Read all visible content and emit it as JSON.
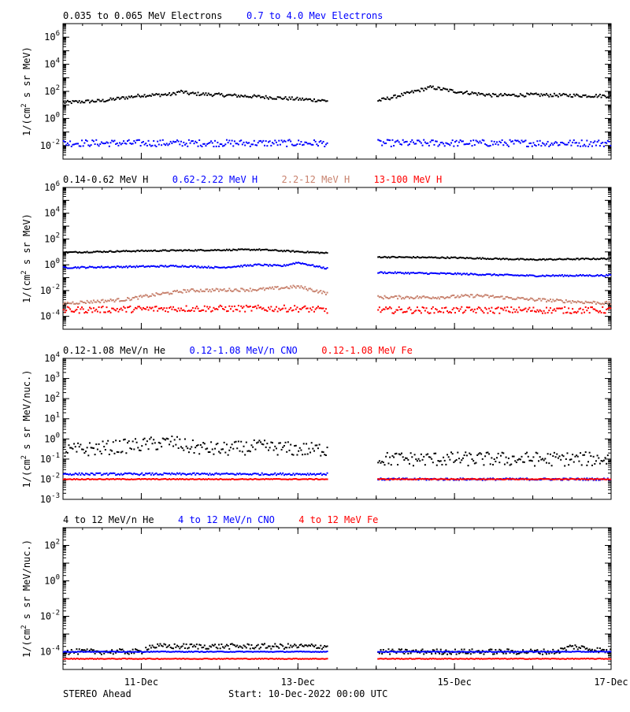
{
  "footer": {
    "spacecraft": "STEREO Ahead",
    "start": "Start: 10-Dec-2022 00:00 UTC"
  },
  "colors": {
    "black": "#000000",
    "blue": "#0000ff",
    "tan": "#c8826e",
    "red": "#ff0000"
  },
  "chart_data": [
    {
      "type": "scatter",
      "ylabel_main": "1/(cm",
      "ylabel_sup": "2",
      "ylabel_rest": " s sr MeV)",
      "yscale": "log",
      "ylim": [
        0.001,
        10000000
      ],
      "ytick_exponents": [
        6,
        4,
        2,
        0,
        -2
      ],
      "ytick_style": "power",
      "xlim": [
        0,
        7
      ],
      "data_gap": [
        3.38,
        4.02
      ],
      "series": [
        {
          "name": "0.035 to 0.065 MeV Electrons",
          "color": "#000000",
          "profile": [
            [
              0.0,
              15
            ],
            [
              0.5,
              20
            ],
            [
              1.0,
              50
            ],
            [
              1.4,
              60
            ],
            [
              1.5,
              100
            ],
            [
              1.6,
              70
            ],
            [
              2.5,
              40
            ],
            [
              3.38,
              20
            ],
            [
              4.02,
              20
            ],
            [
              4.2,
              35
            ],
            [
              4.5,
              100
            ],
            [
              4.7,
              200
            ],
            [
              5.0,
              100
            ],
            [
              5.5,
              50
            ],
            [
              6.0,
              55
            ],
            [
              6.5,
              50
            ],
            [
              7.0,
              45
            ]
          ],
          "scatter": 0.12
        },
        {
          "name": "0.7 to 4.0 Mev Electrons",
          "color": "#0000ff",
          "profile": [
            [
              0.0,
              0.015
            ],
            [
              7.0,
              0.015
            ]
          ],
          "scatter": 0.25
        }
      ]
    },
    {
      "type": "scatter",
      "ylabel_main": "1/(cm",
      "ylabel_sup": "2",
      "ylabel_rest": " s sr MeV)",
      "yscale": "log",
      "ylim": [
        1e-05,
        1000000
      ],
      "ytick_exponents": [
        6,
        4,
        2,
        0,
        -2,
        -4
      ],
      "ytick_style": "power",
      "xlim": [
        0,
        7
      ],
      "data_gap": [
        3.38,
        4.02
      ],
      "series": [
        {
          "name": "0.14-0.62 MeV H",
          "color": "#000000",
          "profile": [
            [
              0.0,
              9
            ],
            [
              1.0,
              12
            ],
            [
              2.5,
              15
            ],
            [
              3.38,
              8
            ],
            [
              4.02,
              4
            ],
            [
              5.0,
              3.5
            ],
            [
              6.0,
              2.5
            ],
            [
              7.0,
              3
            ]
          ],
          "scatter": 0.05
        },
        {
          "name": "0.62-2.22 MeV H",
          "color": "#0000ff",
          "profile": [
            [
              0.0,
              0.6
            ],
            [
              1.5,
              0.8
            ],
            [
              2.0,
              0.6
            ],
            [
              2.5,
              1.0
            ],
            [
              2.8,
              0.8
            ],
            [
              3.0,
              1.5
            ],
            [
              3.38,
              0.5
            ],
            [
              4.02,
              0.25
            ],
            [
              5.0,
              0.2
            ],
            [
              6.0,
              0.14
            ],
            [
              7.0,
              0.15
            ]
          ],
          "scatter": 0.06
        },
        {
          "name": "2.2-12 MeV H",
          "color": "#c8826e",
          "profile": [
            [
              0.0,
              0.001
            ],
            [
              0.8,
              0.002
            ],
            [
              1.2,
              0.005
            ],
            [
              1.6,
              0.01
            ],
            [
              2.5,
              0.012
            ],
            [
              3.0,
              0.02
            ],
            [
              3.38,
              0.006
            ],
            [
              4.02,
              0.003
            ],
            [
              4.8,
              0.003
            ],
            [
              5.3,
              0.004
            ],
            [
              6.0,
              0.002
            ],
            [
              7.0,
              0.001
            ]
          ],
          "scatter": 0.12
        },
        {
          "name": "13-100 MeV H",
          "color": "#ff0000",
          "profile": [
            [
              0.0,
              0.0003
            ],
            [
              1.5,
              0.0004
            ],
            [
              3.0,
              0.0004
            ],
            [
              3.38,
              0.0003
            ],
            [
              4.02,
              0.0003
            ],
            [
              7.0,
              0.0003
            ]
          ],
          "scatter": 0.25
        }
      ]
    },
    {
      "type": "scatter",
      "ylabel_main": "1/(cm",
      "ylabel_sup": "2",
      "ylabel_rest": " s sr MeV/nuc.)",
      "yscale": "log",
      "ylim": [
        0.001,
        10000
      ],
      "ytick_exponents": [
        4,
        3,
        2,
        1,
        0,
        -1,
        -2,
        -3
      ],
      "ytick_style": "power_with_10",
      "xlim": [
        0,
        7
      ],
      "data_gap": [
        3.38,
        4.02
      ],
      "series": [
        {
          "name": "0.12-1.08 MeV/n He",
          "color": "#000000",
          "profile": [
            [
              0.0,
              0.25
            ],
            [
              1.0,
              0.5
            ],
            [
              1.4,
              0.7
            ],
            [
              1.6,
              0.4
            ],
            [
              2.0,
              0.3
            ],
            [
              2.5,
              0.4
            ],
            [
              3.0,
              0.3
            ],
            [
              3.38,
              0.3
            ],
            [
              4.02,
              0.1
            ],
            [
              7.0,
              0.1
            ]
          ],
          "scatter": 0.35
        },
        {
          "name": "0.12-1.08 MeV/n CNO",
          "color": "#0000ff",
          "profile": [
            [
              0.0,
              0.018
            ],
            [
              3.38,
              0.018
            ],
            [
              4.02,
              0.01
            ],
            [
              7.0,
              0.01
            ]
          ],
          "scatter": 0.05
        },
        {
          "name": "0.12-1.08 MeV Fe",
          "color": "#ff0000",
          "profile": [
            [
              0.0,
              0.01
            ],
            [
              7.0,
              0.01
            ]
          ],
          "scatter": 0.02
        }
      ]
    },
    {
      "type": "scatter",
      "ylabel_main": "1/(cm",
      "ylabel_sup": "2",
      "ylabel_rest": " s sr MeV/nuc.)",
      "yscale": "log",
      "ylim": [
        1e-05,
        1000
      ],
      "ytick_exponents": [
        2,
        0,
        -2,
        -4
      ],
      "ytick_style": "power",
      "xlim": [
        0,
        7
      ],
      "data_gap": [
        3.38,
        4.02
      ],
      "series": [
        {
          "name": "4 to 12 MeV/n He",
          "color": "#000000",
          "profile": [
            [
              0.0,
              0.0001
            ],
            [
              1.0,
              0.0001
            ],
            [
              1.1,
              0.0002
            ],
            [
              3.38,
              0.0002
            ],
            [
              4.02,
              0.0001
            ],
            [
              6.3,
              0.0001
            ],
            [
              6.5,
              0.0002
            ],
            [
              7.0,
              0.0001
            ]
          ],
          "scatter": 0.15
        },
        {
          "name": "4 to 12 MeV/n CNO",
          "color": "#0000ff",
          "profile": [
            [
              0.0,
              0.0001
            ],
            [
              7.0,
              0.0001
            ]
          ],
          "scatter": 0.02
        },
        {
          "name": "4 to 12 MeV Fe",
          "color": "#ff0000",
          "profile": [
            [
              0.0,
              4e-05
            ],
            [
              7.0,
              4e-05
            ]
          ],
          "scatter": 0.02
        }
      ]
    }
  ],
  "x_axis": {
    "ticks": [
      {
        "day": 1,
        "label": "11-Dec"
      },
      {
        "day": 3,
        "label": "13-Dec"
      },
      {
        "day": 5,
        "label": "15-Dec"
      },
      {
        "day": 7,
        "label": "17-Dec"
      }
    ]
  }
}
